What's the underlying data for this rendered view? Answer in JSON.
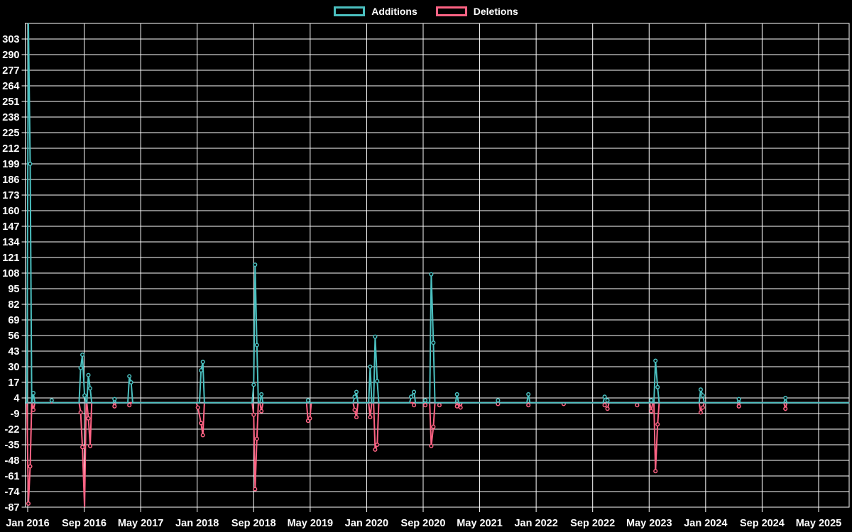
{
  "page": {
    "background": "#000000",
    "text_color": "#ffffff"
  },
  "chart_data": {
    "type": "line",
    "title": "",
    "legend_position": "top-center",
    "grid": true,
    "colors": {
      "grid": "#ffffff",
      "axis_border": "#ffffff",
      "zero_line": "#a2bcc7",
      "tick_text": "#ffffff",
      "background": "#000000"
    },
    "legend_items": [
      {
        "label": "Additions",
        "color": "#4bc0c0"
      },
      {
        "label": "Deletions",
        "color": "#ff6384"
      }
    ],
    "y_axis": {
      "min": -87,
      "max": 316,
      "tick_step": 13,
      "tick_labels": [
        303,
        290,
        277,
        264,
        251,
        238,
        225,
        212,
        199,
        186,
        173,
        160,
        147,
        134,
        121,
        108,
        95,
        82,
        69,
        56,
        43,
        30,
        17,
        4,
        -9,
        -22,
        -35,
        -48,
        -61,
        -74,
        -87
      ]
    },
    "x_axis": {
      "tick_labels": [
        "Jan 2016",
        "Sep 2016",
        "May 2017",
        "Jan 2018",
        "Sep 2018",
        "May 2019",
        "Jan 2020",
        "Sep 2020",
        "May 2021",
        "Jan 2022",
        "Sep 2022",
        "May 2023",
        "Jan 2024",
        "Sep 2024",
        "May 2025"
      ],
      "months_per_tick": 8,
      "domain_months": [
        -0.35,
        116.35
      ]
    },
    "series": [
      {
        "name": "Additions",
        "color": "#4bc0c0",
        "points_t_months_value": [
          [
            0.1,
            316
          ],
          [
            0.35,
            199
          ],
          [
            0.8,
            8
          ],
          [
            3.4,
            2
          ],
          [
            7.5,
            29
          ],
          [
            7.75,
            40
          ],
          [
            8.05,
            6
          ],
          [
            8.6,
            23
          ],
          [
            8.85,
            12
          ],
          [
            12.3,
            3
          ],
          [
            14.4,
            22
          ],
          [
            14.65,
            17
          ],
          [
            24.55,
            27
          ],
          [
            24.8,
            34
          ],
          [
            32.0,
            15
          ],
          [
            32.2,
            115
          ],
          [
            32.45,
            48
          ],
          [
            33.1,
            7
          ],
          [
            39.7,
            2
          ],
          [
            46.3,
            5
          ],
          [
            46.55,
            9
          ],
          [
            48.5,
            30
          ],
          [
            49.2,
            55
          ],
          [
            49.5,
            18
          ],
          [
            54.3,
            5
          ],
          [
            54.7,
            9
          ],
          [
            56.3,
            2
          ],
          [
            57.15,
            107
          ],
          [
            57.45,
            50
          ],
          [
            60.8,
            7
          ],
          [
            66.6,
            2
          ],
          [
            70.9,
            7
          ],
          [
            81.7,
            5
          ],
          [
            82.1,
            2
          ],
          [
            88.3,
            2
          ],
          [
            88.9,
            35
          ],
          [
            89.2,
            13
          ],
          [
            95.3,
            11
          ],
          [
            95.6,
            6
          ],
          [
            100.7,
            3
          ],
          [
            107.3,
            4
          ]
        ]
      },
      {
        "name": "Deletions",
        "color": "#ff6384",
        "points_t_months_value": [
          [
            0.1,
            -84
          ],
          [
            0.35,
            -53
          ],
          [
            0.8,
            -6
          ],
          [
            7.5,
            -8
          ],
          [
            7.75,
            -37
          ],
          [
            8.05,
            -87
          ],
          [
            8.6,
            -13
          ],
          [
            8.85,
            -36
          ],
          [
            12.3,
            -3
          ],
          [
            14.4,
            -2
          ],
          [
            24.1,
            -4
          ],
          [
            24.55,
            -17
          ],
          [
            24.8,
            -27
          ],
          [
            32.0,
            -10
          ],
          [
            32.2,
            -72
          ],
          [
            32.45,
            -30
          ],
          [
            33.1,
            -7
          ],
          [
            39.7,
            -15
          ],
          [
            39.95,
            -13
          ],
          [
            46.3,
            -6
          ],
          [
            46.55,
            -12
          ],
          [
            48.5,
            -12
          ],
          [
            49.2,
            -39
          ],
          [
            49.5,
            -35
          ],
          [
            54.7,
            -2
          ],
          [
            56.3,
            -2
          ],
          [
            57.15,
            -36
          ],
          [
            57.45,
            -20
          ],
          [
            58.3,
            -2
          ],
          [
            60.8,
            -3
          ],
          [
            61.3,
            -4
          ],
          [
            66.6,
            -1
          ],
          [
            70.9,
            -2
          ],
          [
            75.9,
            -1
          ],
          [
            81.7,
            -2
          ],
          [
            82.1,
            -5
          ],
          [
            86.3,
            -2
          ],
          [
            88.3,
            -7
          ],
          [
            88.9,
            -57
          ],
          [
            89.2,
            -18
          ],
          [
            95.3,
            -8
          ],
          [
            95.6,
            -4
          ],
          [
            100.7,
            -3
          ],
          [
            107.3,
            -5
          ]
        ]
      }
    ]
  }
}
